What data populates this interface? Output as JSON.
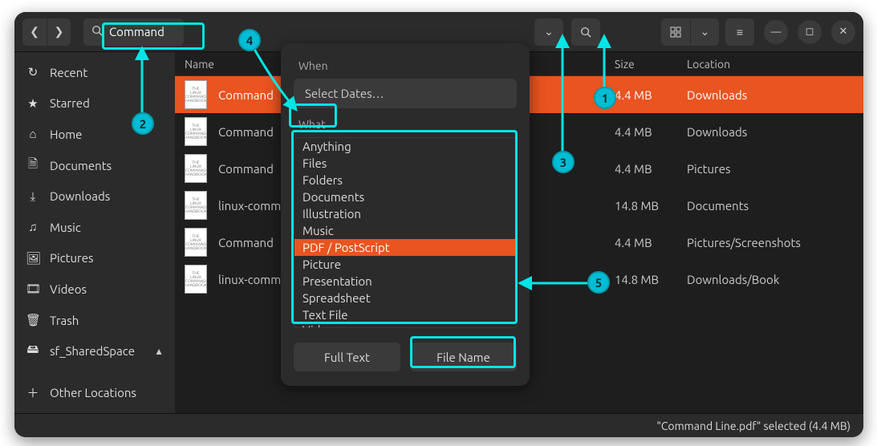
{
  "search": {
    "query": "Command"
  },
  "columns": {
    "name": "Name",
    "size": "Size",
    "location": "Location"
  },
  "sidebar": {
    "items": [
      {
        "icon": "↻",
        "label": "Recent"
      },
      {
        "icon": "★",
        "label": "Starred"
      },
      {
        "icon": "⌂",
        "label": "Home"
      },
      {
        "icon": "🗎",
        "label": "Documents"
      },
      {
        "icon": "⤓",
        "label": "Downloads"
      },
      {
        "icon": "♫",
        "label": "Music"
      },
      {
        "icon": "🖼",
        "label": "Pictures"
      },
      {
        "icon": "🎞",
        "label": "Videos"
      },
      {
        "icon": "🗑",
        "label": "Trash"
      },
      {
        "icon": "🖴",
        "label": "sf_SharedSpace",
        "eject": true
      },
      {
        "icon": "＋",
        "label": "Other Locations"
      }
    ]
  },
  "files": [
    {
      "name": "Command",
      "size": "4.4 MB",
      "location": "Downloads",
      "selected": true
    },
    {
      "name": "Command",
      "size": "4.4 MB",
      "location": "Downloads"
    },
    {
      "name": "Command",
      "size": "4.4 MB",
      "location": "Pictures"
    },
    {
      "name": "linux-comm",
      "size": "14.8 MB",
      "location": "Documents"
    },
    {
      "name": "Command",
      "size": "4.4 MB",
      "location": "Pictures/Screenshots"
    },
    {
      "name": "linux-comm",
      "size": "14.8 MB",
      "location": "Downloads/Book"
    }
  ],
  "dropdown": {
    "when_label": "When",
    "when_placeholder": "Select Dates…",
    "what_label": "What",
    "types": [
      {
        "label": "Anything"
      },
      {
        "label": "Files"
      },
      {
        "label": "Folders"
      },
      {
        "label": "Documents"
      },
      {
        "label": "Illustration"
      },
      {
        "label": "Music"
      },
      {
        "label": "PDF / PostScript",
        "selected": true
      },
      {
        "label": "Picture"
      },
      {
        "label": "Presentation"
      },
      {
        "label": "Spreadsheet"
      },
      {
        "label": "Text File"
      },
      {
        "label": "Video",
        "half": true
      }
    ],
    "full_text": "Full Text",
    "file_name": "File Name"
  },
  "status": "\"Command Line.pdf\" selected  (4.4 MB)",
  "callouts": {
    "b1": "1",
    "b2": "2",
    "b3": "3",
    "b4": "4",
    "b5": "5"
  }
}
